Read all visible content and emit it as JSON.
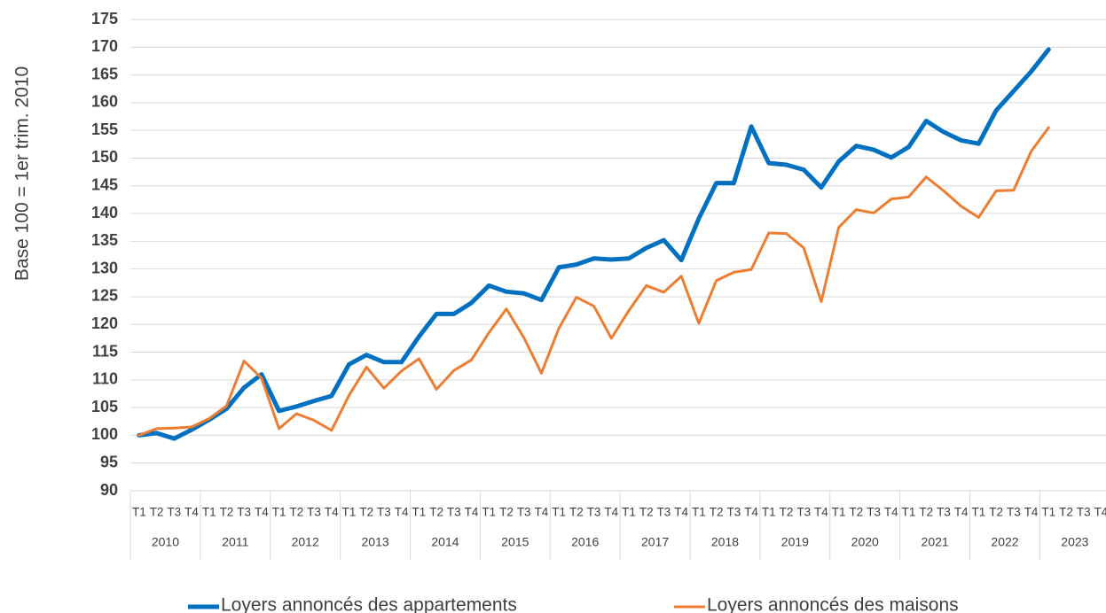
{
  "chart_data": {
    "type": "line",
    "ylabel": "Base 100 = 1er trim. 2010",
    "categories": [
      "T1",
      "T2",
      "T3",
      "T4",
      "T1",
      "T2",
      "T3",
      "T4",
      "T1",
      "T2",
      "T3",
      "T4",
      "T1",
      "T2",
      "T3",
      "T4",
      "T1",
      "T2",
      "T3",
      "T4",
      "T1",
      "T2",
      "T3",
      "T4",
      "T1",
      "T2",
      "T3",
      "T4",
      "T1",
      "T2",
      "T3",
      "T4",
      "T1",
      "T2",
      "T3",
      "T4",
      "T1",
      "T2",
      "T3",
      "T4",
      "T1",
      "T2",
      "T3",
      "T4",
      "T1",
      "T2",
      "T3",
      "T4",
      "T1",
      "T2",
      "T3",
      "T4",
      "T1",
      "T2",
      "T3",
      "T4"
    ],
    "groups": [
      "2010",
      "2011",
      "2012",
      "2013",
      "2014",
      "2015",
      "2016",
      "2017",
      "2018",
      "2019",
      "2020",
      "2021",
      "2022",
      "2023"
    ],
    "series": [
      {
        "name": "Loyers annoncés des appartements",
        "color": "#0070c0",
        "width": 5,
        "values": [
          100,
          100.4,
          99.4,
          101,
          102.8,
          104.8,
          108.6,
          111,
          104.4,
          105.2,
          106.2,
          107.1,
          112.8,
          114.5,
          113.2,
          113.2,
          117.8,
          121.9,
          121.9,
          123.9,
          127,
          125.9,
          125.6,
          124.4,
          130.3,
          130.8,
          131.9,
          131.7,
          131.9,
          133.8,
          135.2,
          131.6,
          139.1,
          145.5,
          145.5,
          155.7,
          149.1,
          148.8,
          147.9,
          144.7,
          149.4,
          152.2,
          151.5,
          150.1,
          152,
          156.7,
          154.7,
          153.2,
          152.6,
          158.6,
          162.1,
          165.6,
          169.6,
          null,
          null,
          null
        ]
      },
      {
        "name": "Loyers annoncés des maisons",
        "color": "#ed7d31",
        "width": 3,
        "values": [
          100,
          101.2,
          101.3,
          101.5,
          103,
          105.3,
          113.4,
          110.3,
          101.2,
          103.9,
          102.7,
          100.9,
          107.2,
          112.3,
          108.5,
          111.6,
          113.8,
          108.3,
          111.7,
          113.6,
          118.5,
          122.8,
          117.6,
          111.2,
          119.3,
          124.9,
          123.3,
          117.5,
          122.5,
          127,
          125.8,
          128.7,
          120.2,
          127.9,
          129.4,
          129.9,
          136.5,
          136.4,
          133.8,
          124.1,
          137.5,
          140.7,
          140.1,
          142.6,
          143,
          146.6,
          144.1,
          141.3,
          139.3,
          144.1,
          144.2,
          151.2,
          155.5,
          null,
          null,
          null
        ]
      }
    ],
    "ylim": [
      90,
      175
    ],
    "yticks": [
      90,
      95,
      100,
      105,
      110,
      115,
      120,
      125,
      130,
      135,
      140,
      145,
      150,
      155,
      160,
      165,
      170,
      175
    ],
    "grid": true,
    "legend": "bottom"
  }
}
